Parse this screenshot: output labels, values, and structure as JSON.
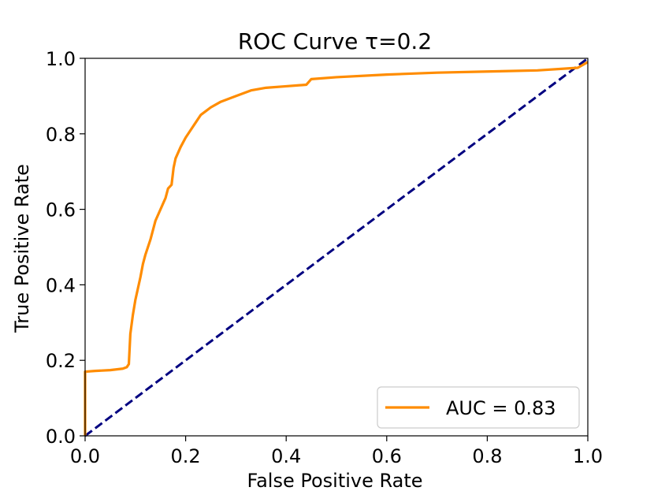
{
  "chart_data": {
    "type": "line",
    "title": "ROC Curve τ=0.2",
    "xlabel": "False Positive Rate",
    "ylabel": "True Positive Rate",
    "xlim": [
      0.0,
      1.0
    ],
    "ylim": [
      0.0,
      1.0
    ],
    "x_ticks": [
      0.0,
      0.2,
      0.4,
      0.6,
      0.8,
      1.0
    ],
    "y_ticks": [
      0.0,
      0.2,
      0.4,
      0.6,
      0.8,
      1.0
    ],
    "x_tick_labels": [
      "0.0",
      "0.2",
      "0.4",
      "0.6",
      "0.8",
      "1.0"
    ],
    "y_tick_labels": [
      "0.0",
      "0.2",
      "0.4",
      "0.6",
      "0.8",
      "1.0"
    ],
    "grid": false,
    "legend": {
      "position": "lower-right",
      "entries": [
        "AUC = 0.83"
      ]
    },
    "series": [
      {
        "name": "AUC = 0.83",
        "color": "#ff8c00",
        "style": "solid",
        "x": [
          0.0,
          0.0,
          0.001,
          0.02,
          0.05,
          0.075,
          0.083,
          0.087,
          0.09,
          0.095,
          0.1,
          0.105,
          0.11,
          0.115,
          0.12,
          0.13,
          0.14,
          0.15,
          0.16,
          0.165,
          0.172,
          0.176,
          0.18,
          0.19,
          0.2,
          0.21,
          0.22,
          0.23,
          0.24,
          0.25,
          0.27,
          0.3,
          0.33,
          0.36,
          0.4,
          0.44,
          0.45,
          0.5,
          0.6,
          0.7,
          0.8,
          0.9,
          0.98,
          1.0
        ],
        "y": [
          0.0,
          0.17,
          0.17,
          0.172,
          0.174,
          0.178,
          0.182,
          0.19,
          0.27,
          0.32,
          0.36,
          0.39,
          0.42,
          0.455,
          0.48,
          0.52,
          0.57,
          0.6,
          0.63,
          0.655,
          0.665,
          0.71,
          0.735,
          0.765,
          0.79,
          0.81,
          0.83,
          0.85,
          0.86,
          0.87,
          0.885,
          0.9,
          0.915,
          0.922,
          0.926,
          0.93,
          0.945,
          0.95,
          0.957,
          0.962,
          0.965,
          0.968,
          0.975,
          0.99
        ]
      },
      {
        "name": "",
        "color": "#000080",
        "style": "dashed",
        "x": [
          0.0,
          1.0
        ],
        "y": [
          0.0,
          1.0
        ]
      }
    ]
  }
}
